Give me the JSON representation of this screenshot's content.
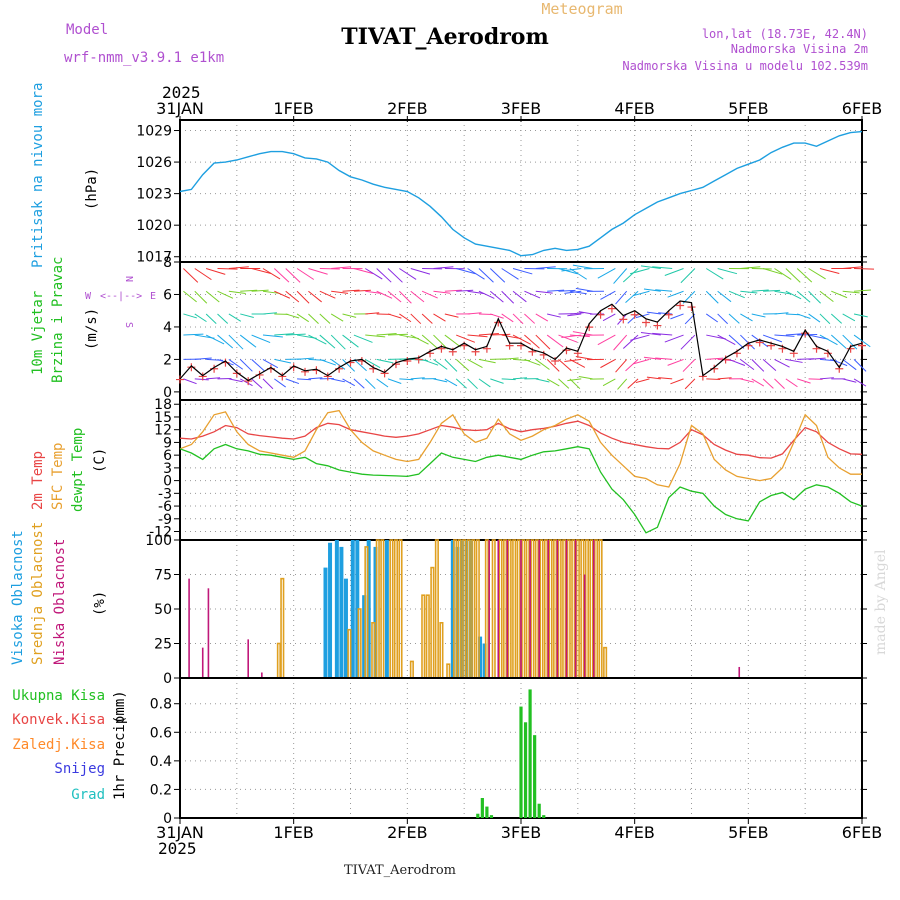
{
  "header": {
    "model_label": "Model",
    "model_name": "wrf-nmm_v3.9.1 e1km",
    "title": "TIVAT_Aerodrom",
    "subtitle": "Meteogram",
    "location_line": "lon,lat (18.73E, 42.4N)",
    "elevation_line": "Nadmorska Visina 2m",
    "model_elevation_line": "Nadmorska Visina u modelu 102.539m",
    "footer": "TIVAT_Aerodrom",
    "credit": "made by Angel"
  },
  "time_axis": {
    "year": "2025",
    "ticks": [
      "31JAN",
      "1FEB",
      "2FEB",
      "3FEB",
      "4FEB",
      "5FEB",
      "6FEB"
    ],
    "range_days": [
      0,
      6
    ]
  },
  "colors": {
    "pressure": "#1e9fe0",
    "wind_label": "#22c022",
    "t2m": "#e84545",
    "sfc": "#e8a030",
    "dew": "#22c022",
    "high_cloud": "#1e9fe0",
    "mid_cloud": "#e0a020",
    "low_cloud": "#c0187a",
    "precip_total": "#22c022",
    "precip_conv": "#e84545",
    "precip_frozen": "#ff8a2a",
    "snow": "#3b3be0",
    "graupel": "#20c0c0",
    "compass": "#b050d0"
  },
  "chart_data": [
    {
      "type": "line",
      "panel": "pressure",
      "ylabel": "Pritisak na nivou mora",
      "units": "(hPa)",
      "ylim": [
        1016.5,
        1030
      ],
      "yticks": [
        1017,
        1020,
        1023,
        1026,
        1029
      ],
      "x": [
        0,
        0.1,
        0.2,
        0.3,
        0.4,
        0.5,
        0.6,
        0.7,
        0.8,
        0.9,
        1.0,
        1.1,
        1.2,
        1.3,
        1.4,
        1.5,
        1.6,
        1.7,
        1.8,
        1.9,
        2.0,
        2.1,
        2.2,
        2.3,
        2.4,
        2.5,
        2.6,
        2.7,
        2.8,
        2.9,
        3.0,
        3.1,
        3.2,
        3.3,
        3.4,
        3.5,
        3.6,
        3.7,
        3.8,
        3.9,
        4.0,
        4.1,
        4.2,
        4.3,
        4.4,
        4.5,
        4.6,
        4.7,
        4.8,
        4.9,
        5.0,
        5.1,
        5.2,
        5.3,
        5.4,
        5.5,
        5.6,
        5.7,
        5.8,
        5.9,
        6.0
      ],
      "values": [
        1023.2,
        1023.4,
        1024.8,
        1025.9,
        1026.0,
        1026.2,
        1026.5,
        1026.8,
        1027.0,
        1027.0,
        1026.8,
        1026.4,
        1026.3,
        1026.0,
        1025.2,
        1024.6,
        1024.3,
        1023.9,
        1023.6,
        1023.4,
        1023.2,
        1022.6,
        1021.8,
        1020.8,
        1019.6,
        1018.8,
        1018.2,
        1018.0,
        1017.8,
        1017.6,
        1017.1,
        1017.2,
        1017.6,
        1017.8,
        1017.6,
        1017.7,
        1018.0,
        1018.8,
        1019.6,
        1020.2,
        1021.0,
        1021.6,
        1022.2,
        1022.6,
        1023.0,
        1023.3,
        1023.6,
        1024.2,
        1024.8,
        1025.4,
        1025.8,
        1026.2,
        1026.9,
        1027.4,
        1027.8,
        1027.8,
        1027.5,
        1028.0,
        1028.5,
        1028.8,
        1028.9
      ]
    },
    {
      "type": "line",
      "panel": "wind",
      "ylabel": "10m Vjetar",
      "ylabel2": "Brzina i Pravac",
      "units": "(m/s)",
      "compass": {
        "w": "W",
        "e": "E",
        "n": "N",
        "s": "S",
        "arrows": "<--|-->"
      },
      "ylim": [
        -0.5,
        8
      ],
      "yticks": [
        0,
        2,
        4,
        6,
        8
      ],
      "x": [
        0,
        0.1,
        0.2,
        0.3,
        0.4,
        0.5,
        0.6,
        0.7,
        0.8,
        0.9,
        1.0,
        1.1,
        1.2,
        1.3,
        1.4,
        1.5,
        1.6,
        1.7,
        1.8,
        1.9,
        2.0,
        2.1,
        2.2,
        2.3,
        2.4,
        2.5,
        2.6,
        2.7,
        2.8,
        2.9,
        3.0,
        3.1,
        3.2,
        3.3,
        3.4,
        3.5,
        3.6,
        3.7,
        3.8,
        3.9,
        4.0,
        4.1,
        4.2,
        4.3,
        4.4,
        4.5,
        4.6,
        4.7,
        4.8,
        4.9,
        5.0,
        5.1,
        5.2,
        5.3,
        5.4,
        5.5,
        5.6,
        5.7,
        5.8,
        5.9,
        6.0
      ],
      "speed": [
        0.8,
        1.6,
        1.0,
        1.5,
        1.9,
        1.2,
        0.7,
        1.1,
        1.5,
        1.0,
        1.6,
        1.3,
        1.4,
        1.0,
        1.5,
        1.9,
        2.0,
        1.5,
        1.2,
        1.8,
        2.0,
        2.1,
        2.5,
        2.8,
        2.6,
        3.0,
        2.6,
        2.8,
        4.5,
        3.0,
        3.0,
        2.6,
        2.4,
        2.0,
        2.7,
        2.5,
        4.2,
        5.0,
        5.4,
        4.7,
        5.0,
        4.5,
        4.3,
        5.0,
        5.6,
        5.5,
        1.0,
        1.5,
        2.1,
        2.5,
        3.0,
        3.2,
        3.0,
        2.8,
        2.5,
        3.8,
        2.8,
        2.5,
        1.5,
        2.8,
        3.0
      ],
      "gust_series_name": "",
      "note": ""
    },
    {
      "type": "line",
      "panel": "temperature",
      "series_labels": [
        "2m Temp",
        "SFC Temp",
        "dewpt Temp"
      ],
      "units": "(C)",
      "ylim": [
        -14,
        19
      ],
      "yticks": [
        -12,
        -9,
        -6,
        -3,
        0,
        3,
        6,
        9,
        12,
        15,
        18
      ],
      "x": [
        0,
        0.1,
        0.2,
        0.3,
        0.4,
        0.5,
        0.6,
        0.7,
        0.8,
        0.9,
        1.0,
        1.1,
        1.2,
        1.3,
        1.4,
        1.5,
        1.6,
        1.7,
        1.8,
        1.9,
        2.0,
        2.1,
        2.2,
        2.3,
        2.4,
        2.5,
        2.6,
        2.7,
        2.8,
        2.9,
        3.0,
        3.1,
        3.2,
        3.3,
        3.4,
        3.5,
        3.6,
        3.7,
        3.8,
        3.9,
        4.0,
        4.1,
        4.2,
        4.3,
        4.4,
        4.5,
        4.6,
        4.7,
        4.8,
        4.9,
        5.0,
        5.1,
        5.2,
        5.3,
        5.4,
        5.5,
        5.6,
        5.7,
        5.8,
        5.9,
        6.0
      ],
      "series": [
        {
          "name": "2m Temp",
          "values": [
            10.0,
            9.8,
            10.5,
            11.5,
            13.0,
            12.5,
            11.0,
            10.6,
            10.3,
            10.0,
            9.8,
            10.5,
            12.5,
            13.5,
            13.2,
            12.0,
            11.5,
            11.0,
            10.5,
            10.2,
            10.5,
            11.0,
            12.0,
            13.0,
            12.6,
            12.0,
            11.8,
            12.0,
            13.5,
            12.2,
            11.5,
            12.0,
            12.3,
            12.8,
            13.5,
            14.0,
            13.0,
            11.2,
            10.0,
            9.0,
            8.5,
            8.0,
            7.6,
            7.5,
            9.0,
            12.0,
            10.8,
            8.5,
            7.2,
            6.2,
            6.0,
            5.4,
            5.3,
            6.3,
            9.5,
            12.5,
            11.5,
            9.0,
            7.5,
            6.3,
            6.2
          ]
        },
        {
          "name": "SFC Temp",
          "values": [
            7.5,
            8.5,
            11.5,
            15.5,
            16.2,
            11.5,
            8.5,
            7.0,
            6.5,
            6.0,
            5.5,
            7.0,
            12.0,
            16.0,
            16.5,
            12.0,
            9.0,
            7.0,
            6.0,
            5.0,
            4.5,
            5.0,
            9.0,
            13.5,
            15.5,
            11.0,
            9.0,
            10.0,
            14.5,
            11.0,
            9.5,
            10.5,
            12.0,
            13.0,
            14.5,
            15.5,
            14.0,
            9.0,
            6.0,
            3.5,
            1.0,
            0.5,
            -1.0,
            -1.5,
            4.0,
            13.0,
            11.0,
            5.0,
            2.5,
            1.0,
            0.5,
            0.0,
            0.5,
            3.0,
            9.0,
            15.5,
            13.0,
            5.5,
            3.0,
            1.5,
            1.5
          ]
        },
        {
          "name": "dewpt Temp",
          "values": [
            7.5,
            6.5,
            5.0,
            7.5,
            8.5,
            7.5,
            7.0,
            6.2,
            6.0,
            5.5,
            5.0,
            5.5,
            4.0,
            3.5,
            2.5,
            2.0,
            1.5,
            1.3,
            1.2,
            1.1,
            1.0,
            1.5,
            4.0,
            6.5,
            5.5,
            5.0,
            4.5,
            5.5,
            6.0,
            5.5,
            5.0,
            6.0,
            6.8,
            7.0,
            7.5,
            8.0,
            7.5,
            2.0,
            -2.0,
            -4.5,
            -8.0,
            -12.3,
            -11.0,
            -4.0,
            -1.5,
            -2.5,
            -3.0,
            -6.0,
            -8.0,
            -9.0,
            -9.5,
            -5.0,
            -3.5,
            -2.8,
            -4.5,
            -2.0,
            -1.0,
            -1.5,
            -3.0,
            -5.0,
            -6.0
          ]
        }
      ]
    },
    {
      "type": "bar",
      "panel": "clouds",
      "series_labels": [
        "Visoka Oblacnost",
        "Srednja Oblacnost",
        "Niska Oblacnost"
      ],
      "units": "(%)",
      "ylim": [
        0,
        100
      ],
      "yticks": [
        0,
        25,
        50,
        75,
        100
      ],
      "series": [
        {
          "name": "Visoka Oblacnost",
          "x": [
            1.28,
            1.32,
            1.38,
            1.42,
            1.46,
            1.52,
            1.56,
            1.62,
            1.66,
            1.72,
            1.82,
            2.4,
            2.44,
            2.48,
            2.52,
            2.56,
            2.64,
            2.68
          ],
          "values": [
            80,
            98,
            100,
            95,
            72,
            100,
            100,
            60,
            100,
            95,
            100,
            100,
            95,
            100,
            100,
            100,
            30,
            25
          ]
        },
        {
          "name": "Srednja Oblacnost",
          "x": [
            0.87,
            0.9,
            1.49,
            1.58,
            1.64,
            1.7,
            1.74,
            1.78,
            1.86,
            1.9,
            1.94,
            2.04,
            2.14,
            2.18,
            2.22,
            2.26,
            2.3,
            2.36,
            2.42,
            2.46,
            2.5,
            2.54,
            2.58,
            2.62,
            2.7,
            2.76,
            2.82,
            2.86,
            2.9,
            2.94,
            2.98,
            3.02,
            3.06,
            3.1,
            3.14,
            3.18,
            3.22,
            3.26,
            3.3,
            3.34,
            3.38,
            3.42,
            3.46,
            3.5,
            3.54,
            3.58,
            3.62,
            3.66,
            3.7,
            3.74
          ],
          "values": [
            25,
            72,
            35,
            50,
            95,
            40,
            100,
            100,
            100,
            100,
            100,
            12,
            60,
            60,
            80,
            100,
            40,
            10,
            100,
            100,
            100,
            100,
            100,
            100,
            100,
            100,
            100,
            100,
            100,
            100,
            100,
            100,
            100,
            100,
            100,
            100,
            100,
            100,
            100,
            100,
            100,
            100,
            100,
            100,
            100,
            100,
            100,
            100,
            100,
            22
          ]
        },
        {
          "name": "Niska Oblacnost",
          "x": [
            0.08,
            0.2,
            0.25,
            0.6,
            0.72,
            2.72,
            2.8,
            2.88,
            3.0,
            3.08,
            3.16,
            3.24,
            3.32,
            3.4,
            3.48,
            3.56,
            3.64,
            4.92
          ],
          "values": [
            72,
            22,
            65,
            28,
            4,
            100,
            100,
            100,
            100,
            100,
            100,
            100,
            100,
            100,
            100,
            75,
            100,
            8
          ]
        }
      ]
    },
    {
      "type": "bar",
      "panel": "precip",
      "series_labels": [
        "Ukupna Kisa",
        "Konvek.Kisa",
        "Zaledj.Kisa",
        "Snijeg",
        "Grad"
      ],
      "ylabel": "1hr Precip",
      "units": "(mm)",
      "ylim": [
        0,
        0.98
      ],
      "yticks": [
        0,
        0.2,
        0.4,
        0.6,
        0.8
      ],
      "series": [
        {
          "name": "Ukupna Kisa",
          "x": [
            2.62,
            2.66,
            2.7,
            2.74,
            3.0,
            3.04,
            3.08,
            3.12,
            3.16,
            3.2
          ],
          "values": [
            0.03,
            0.14,
            0.08,
            0.02,
            0.78,
            0.67,
            0.9,
            0.58,
            0.1,
            0.02
          ]
        }
      ]
    }
  ]
}
